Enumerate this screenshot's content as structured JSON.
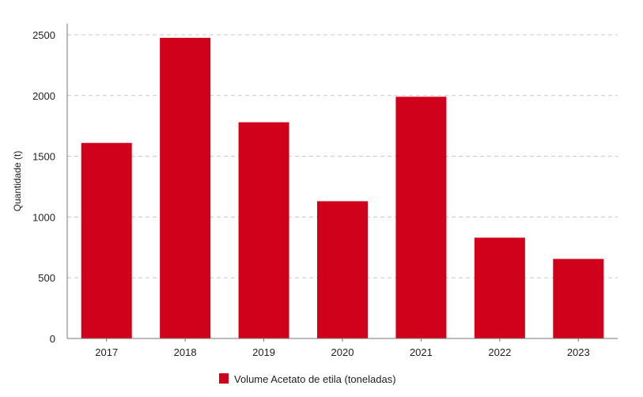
{
  "chart_data": {
    "type": "bar",
    "categories": [
      "2017",
      "2018",
      "2019",
      "2020",
      "2021",
      "2022",
      "2023"
    ],
    "series": [
      {
        "name": "Volume Acetato de etila (toneladas)",
        "values": [
          1610,
          2475,
          1780,
          1130,
          1990,
          830,
          655
        ]
      }
    ],
    "ylabel": "Quantidade (t)",
    "xlabel": "",
    "ylim": [
      0,
      2500
    ],
    "yticks": [
      "0",
      "500",
      "1000",
      "1500",
      "2000",
      "2500"
    ],
    "grid": true,
    "legend_position": "bottom"
  },
  "colors": {
    "bar": "#d0021b",
    "grid": "#c8c8c8",
    "axis": "#777777"
  }
}
